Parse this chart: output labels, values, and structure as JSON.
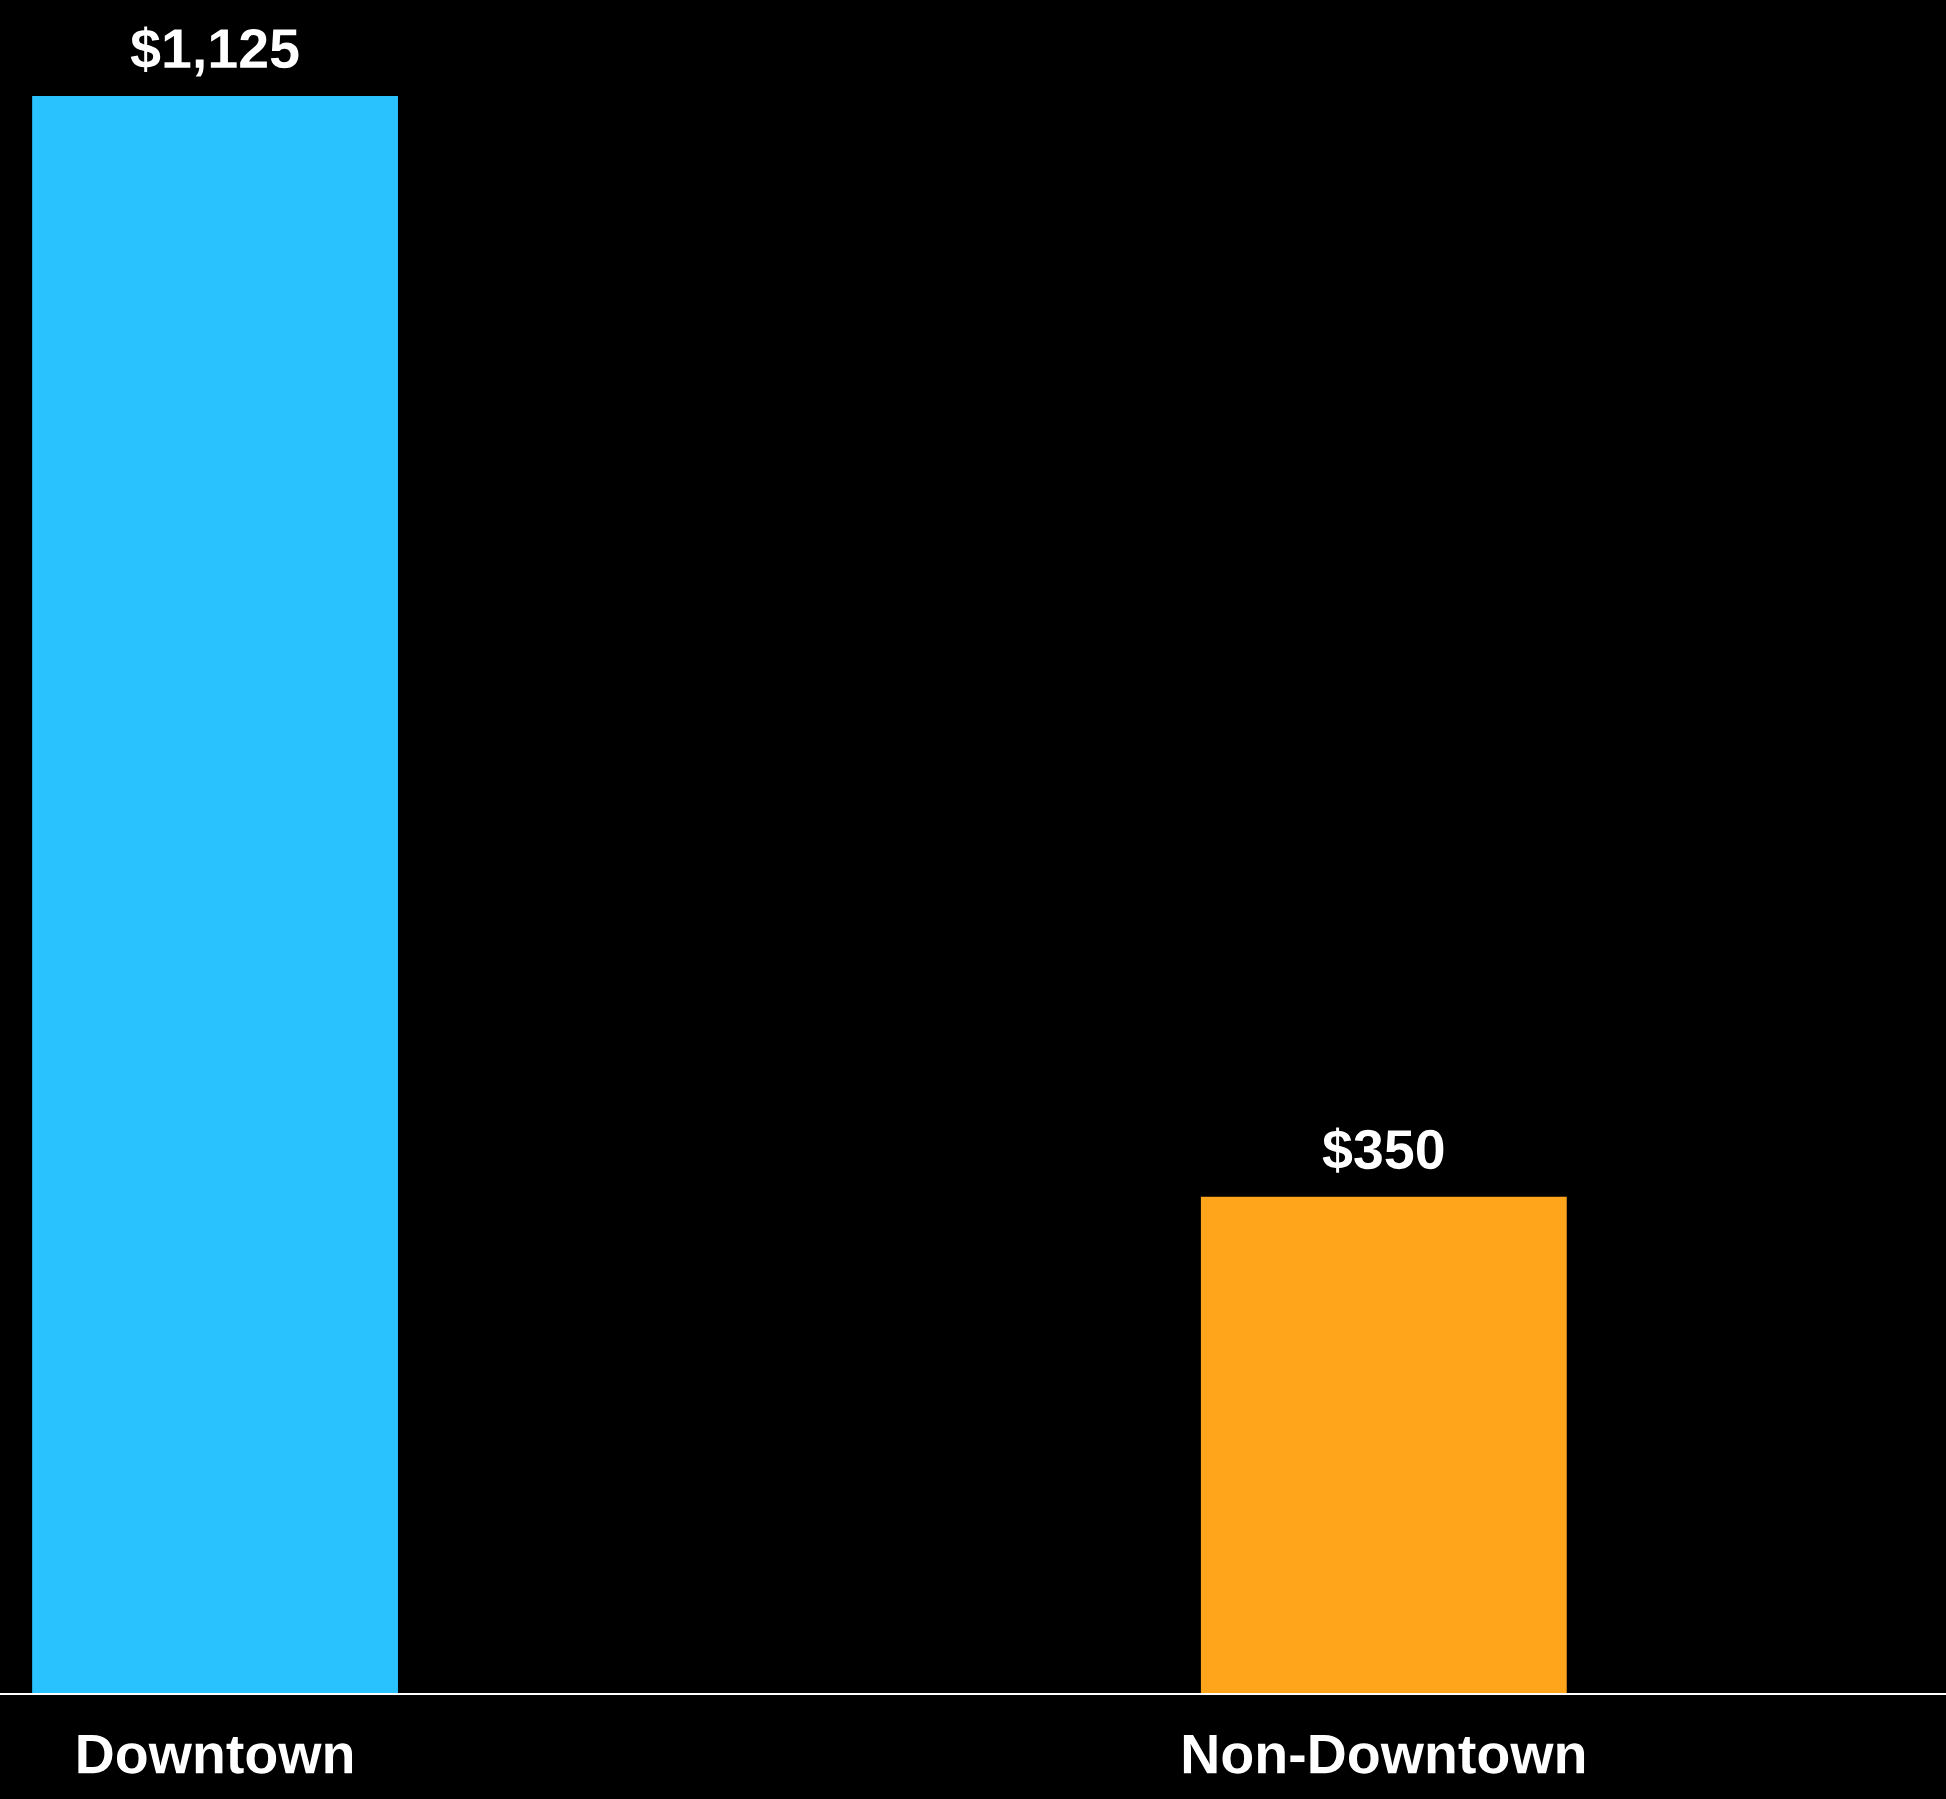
{
  "chart_data": {
    "type": "bar",
    "categories": [
      "Downtown",
      "Non-Downtown"
    ],
    "values": [
      1125,
      350
    ],
    "colors": [
      "#29c1fe",
      "#fea51b"
    ],
    "value_labels": [
      "$1,125",
      "$350"
    ],
    "grid": false,
    "legend": false
  }
}
